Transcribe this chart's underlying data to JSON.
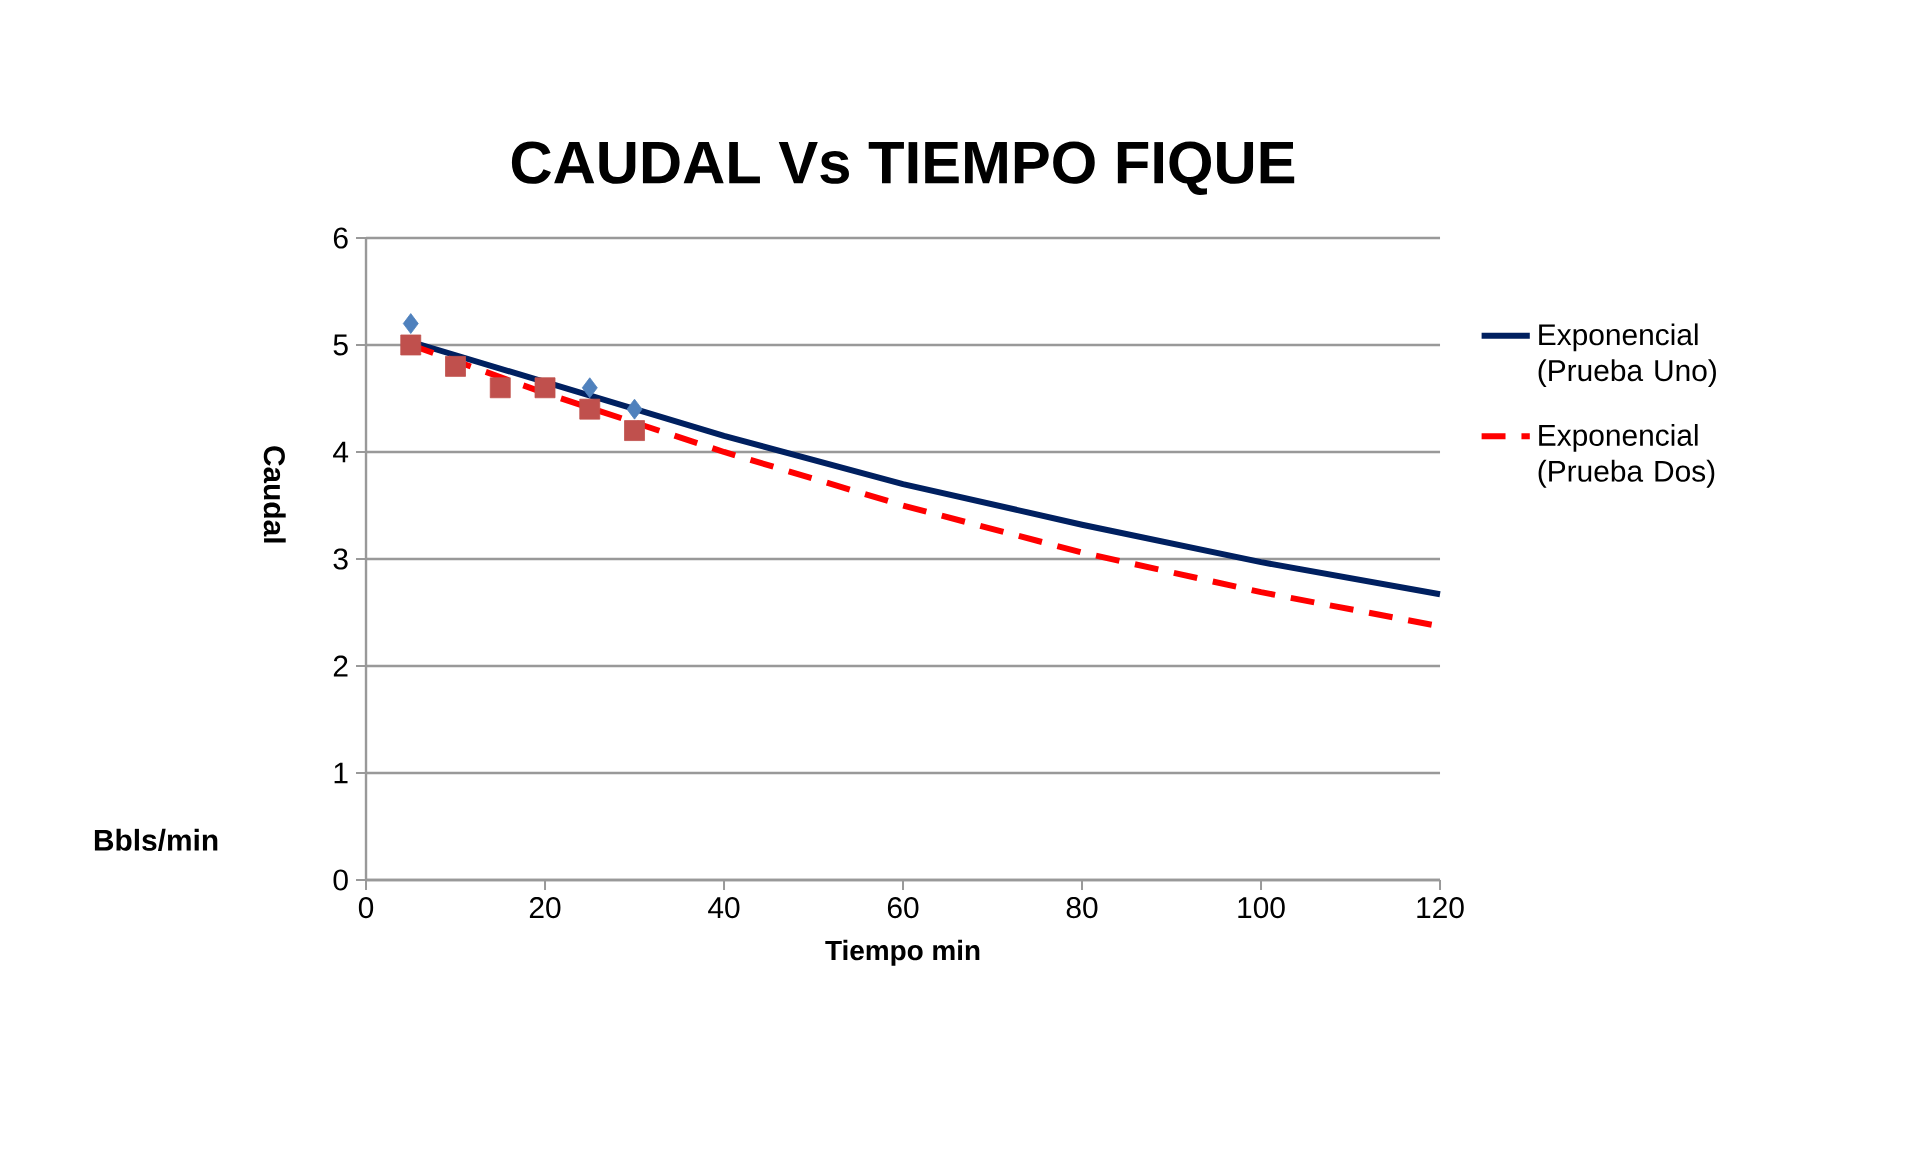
{
  "chart_data": {
    "type": "line",
    "title": "CAUDAL Vs TIEMPO FIQUE",
    "xlabel": "Tiempo min",
    "ylabel": "Caudal",
    "annotations": [
      "Bbls/min"
    ],
    "xlim": [
      0,
      120
    ],
    "xticks": [
      0,
      20,
      40,
      60,
      80,
      100,
      120
    ],
    "ylim": [
      0,
      6
    ],
    "yticks": [
      0,
      1,
      2,
      3,
      4,
      5,
      6
    ],
    "grid": "y",
    "legend": "right",
    "series": [
      {
        "type": "scatter",
        "marker": "diamond",
        "color": "#4f81bd",
        "x": [
          5,
          25,
          30
        ],
        "values": [
          5.2,
          4.6,
          4.4
        ]
      },
      {
        "type": "scatter",
        "marker": "square",
        "color": "#c0504d",
        "x": [
          5,
          10,
          15,
          20,
          25,
          30
        ],
        "values": [
          5.0,
          4.8,
          4.6,
          4.6,
          4.4,
          4.2
        ]
      },
      {
        "name": "Exponencial (Prueba Uno)",
        "color": "#002060",
        "line_style": "solid",
        "marker": "none",
        "x": [
          5,
          40,
          60,
          80,
          100,
          120
        ],
        "values": [
          5.03,
          4.15,
          3.7,
          3.32,
          2.97,
          2.67
        ]
      },
      {
        "name": "Exponencial (Prueba Dos)",
        "color": "#ff0000",
        "line_style": "dashed",
        "marker": "none",
        "x": [
          5,
          20,
          40,
          60,
          80,
          100,
          120
        ],
        "values": [
          5.0,
          4.55,
          4.0,
          3.5,
          3.06,
          2.69,
          2.37
        ]
      }
    ]
  }
}
